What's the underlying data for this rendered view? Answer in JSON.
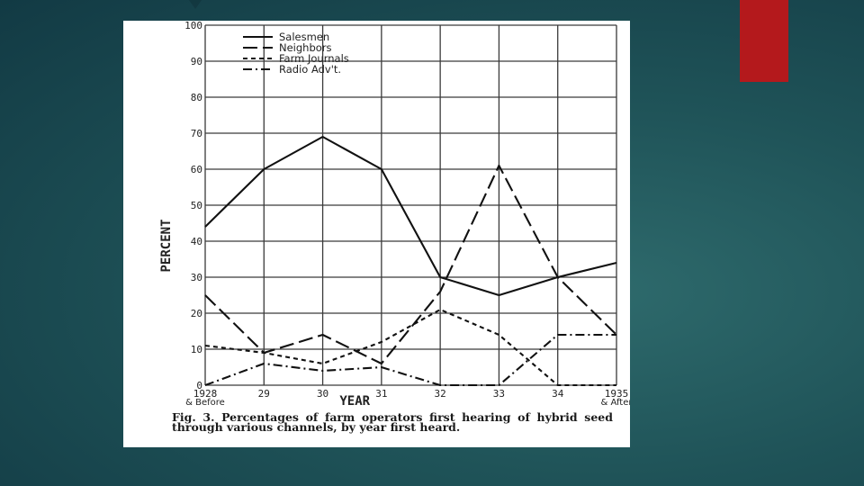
{
  "chart_data": {
    "type": "line",
    "title": "",
    "xlabel": "YEAR",
    "ylabel": "PERCENT",
    "categories": [
      "1928",
      "29",
      "30",
      "31",
      "32",
      "33",
      "34",
      "1935"
    ],
    "category_notes": [
      {
        "index": 0,
        "text": "& Before"
      },
      {
        "index": 7,
        "text": "& After"
      }
    ],
    "yticks": [
      "0",
      "10",
      "20",
      "30",
      "40",
      "50",
      "60",
      "70",
      "80",
      "90",
      "100"
    ],
    "ylim": [
      0,
      100
    ],
    "grid": true,
    "legend_position": "top-left",
    "series": [
      {
        "name": "Salesmen",
        "style": "solid",
        "values": [
          44,
          60,
          69,
          60,
          30,
          25,
          30,
          34
        ]
      },
      {
        "name": "Neighbors",
        "style": "long-dash",
        "values": [
          25,
          9,
          14,
          6,
          26,
          61,
          30,
          14
        ]
      },
      {
        "name": "Farm Journals",
        "style": "short-dash",
        "values": [
          11,
          9,
          6,
          12,
          21,
          14,
          0,
          0
        ]
      },
      {
        "name": "Radio Adv't.",
        "style": "dash-dot",
        "values": [
          0,
          6,
          4,
          5,
          0,
          0,
          14,
          14
        ]
      }
    ]
  },
  "caption": {
    "fig_label": "Fig. 3.",
    "text": "Percentages of farm operators first hearing of hybrid seed through various channels, by year first heard."
  }
}
